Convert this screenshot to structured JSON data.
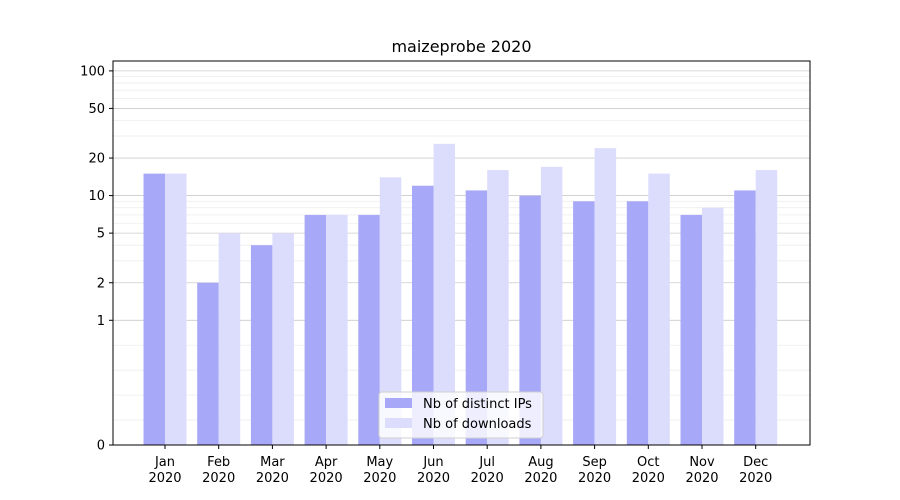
{
  "chart_data": {
    "type": "bar",
    "title": "maizeprobe 2020",
    "xlabel": "",
    "ylabel": "",
    "yscale": "symlog",
    "ylim": [
      0,
      120
    ],
    "yticks": [
      0,
      1,
      2,
      5,
      10,
      20,
      50,
      100
    ],
    "categories": [
      [
        "Jan",
        "2020"
      ],
      [
        "Feb",
        "2020"
      ],
      [
        "Mar",
        "2020"
      ],
      [
        "Apr",
        "2020"
      ],
      [
        "May",
        "2020"
      ],
      [
        "Jun",
        "2020"
      ],
      [
        "Jul",
        "2020"
      ],
      [
        "Aug",
        "2020"
      ],
      [
        "Sep",
        "2020"
      ],
      [
        "Oct",
        "2020"
      ],
      [
        "Nov",
        "2020"
      ],
      [
        "Dec",
        "2020"
      ]
    ],
    "series": [
      {
        "name": "Nb of distinct IPs",
        "color": "#a8a8f8",
        "values": [
          15,
          2,
          4,
          7,
          7,
          12,
          11,
          10,
          9,
          9,
          7,
          11
        ]
      },
      {
        "name": "Nb of downloads",
        "color": "#dcdcfc",
        "values": [
          15,
          5,
          5,
          7,
          14,
          26,
          16,
          17,
          24,
          15,
          8,
          16
        ]
      }
    ],
    "grid": true,
    "legend": "lower-center"
  }
}
